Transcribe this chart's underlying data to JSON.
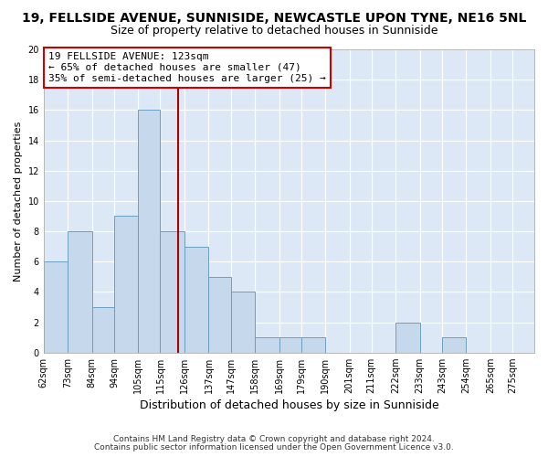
{
  "title": "19, FELLSIDE AVENUE, SUNNISIDE, NEWCASTLE UPON TYNE, NE16 5NL",
  "subtitle": "Size of property relative to detached houses in Sunniside",
  "xlabel": "Distribution of detached houses by size in Sunniside",
  "ylabel": "Number of detached properties",
  "bin_labels": [
    "62sqm",
    "73sqm",
    "84sqm",
    "94sqm",
    "105sqm",
    "115sqm",
    "126sqm",
    "137sqm",
    "147sqm",
    "158sqm",
    "169sqm",
    "179sqm",
    "190sqm",
    "201sqm",
    "211sqm",
    "222sqm",
    "233sqm",
    "243sqm",
    "254sqm",
    "265sqm",
    "275sqm"
  ],
  "bin_edges": [
    62,
    73,
    84,
    94,
    105,
    115,
    126,
    137,
    147,
    158,
    169,
    179,
    190,
    201,
    211,
    222,
    233,
    243,
    254,
    265,
    275
  ],
  "bar_heights": [
    6,
    8,
    3,
    9,
    16,
    8,
    7,
    5,
    4,
    1,
    1,
    1,
    0,
    0,
    0,
    2,
    0,
    1,
    0,
    0
  ],
  "bar_color": "#c5d8ec",
  "bar_edge_color": "#6a9ec0",
  "property_line_x": 123,
  "property_line_color": "#aa0000",
  "annotation_line1": "19 FELLSIDE AVENUE: 123sqm",
  "annotation_line2": "← 65% of detached houses are smaller (47)",
  "annotation_line3": "35% of semi-detached houses are larger (25) →",
  "annotation_box_color": "#ffffff",
  "annotation_box_edge_color": "#cc0000",
  "ylim": [
    0,
    20
  ],
  "yticks": [
    0,
    2,
    4,
    6,
    8,
    10,
    12,
    14,
    16,
    18,
    20
  ],
  "fig_background_color": "#ffffff",
  "plot_background_color": "#dce8f5",
  "footer1": "Contains HM Land Registry data © Crown copyright and database right 2024.",
  "footer2": "Contains public sector information licensed under the Open Government Licence v3.0."
}
